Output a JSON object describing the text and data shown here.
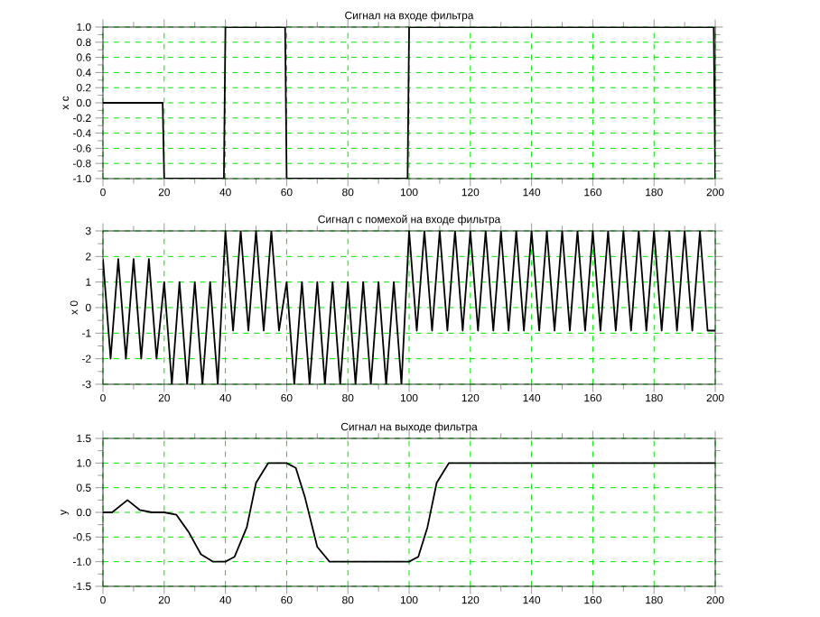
{
  "chart_data": [
    {
      "type": "line",
      "title": "Сигнал на входе фильтра",
      "ylabel": "x c",
      "color": "#000000",
      "grid": true,
      "line_style": "solid",
      "x": [
        0,
        19.5,
        20,
        39.5,
        40,
        59.5,
        60,
        99.5,
        100,
        199.5,
        200
      ],
      "values": [
        0,
        0,
        -1,
        -1,
        1,
        1,
        -1,
        -1,
        1,
        1,
        -1
      ],
      "xlim": [
        0,
        200
      ],
      "ylim": [
        -1,
        1
      ],
      "xticks": [
        0,
        20,
        40,
        60,
        80,
        100,
        120,
        140,
        160,
        180,
        200
      ],
      "yticks": [
        {
          "value": -1,
          "label": "-1.0"
        },
        {
          "value": -0.8,
          "label": "-0.8"
        },
        {
          "value": -0.6,
          "label": "-0.6"
        },
        {
          "value": -0.4,
          "label": "-0.4"
        },
        {
          "value": -0.2,
          "label": "-0.2"
        },
        {
          "value": 0,
          "label": "0.0"
        },
        {
          "value": 0.2,
          "label": "0.2"
        },
        {
          "value": 0.4,
          "label": "0.4"
        },
        {
          "value": 0.6,
          "label": "0.6"
        },
        {
          "value": 0.8,
          "label": "0.8"
        },
        {
          "value": 1,
          "label": "1.0"
        }
      ]
    },
    {
      "type": "line",
      "title": "Сигнал с помехой на входе фильтра",
      "ylabel": "x 0",
      "color": "#000000",
      "grid": true,
      "line_style": "solid",
      "x": [
        0,
        2.5,
        5,
        7.5,
        10,
        12.5,
        15,
        17.5,
        20,
        22.5,
        25,
        27.5,
        30,
        32.5,
        35,
        37.5,
        40,
        42.5,
        45,
        47.5,
        50,
        52.5,
        55,
        57.5,
        60,
        62.5,
        65,
        67.5,
        70,
        72.5,
        75,
        77.5,
        80,
        82.5,
        85,
        87.5,
        90,
        92.5,
        95,
        97.5,
        100,
        102.5,
        105,
        107.5,
        110,
        112.5,
        115,
        117.5,
        120,
        122.5,
        125,
        127.5,
        130,
        132.5,
        135,
        137.5,
        140,
        142.5,
        145,
        147.5,
        150,
        152.5,
        155,
        157.5,
        160,
        162.5,
        165,
        167.5,
        170,
        172.5,
        175,
        177.5,
        180,
        182.5,
        185,
        187.5,
        190,
        192.5,
        195,
        197.5,
        200
      ],
      "values": [
        1.9,
        -2,
        1.9,
        -2,
        1.9,
        -2,
        1.9,
        -2,
        1,
        -3,
        1,
        -3,
        1,
        -3,
        1,
        -3,
        3,
        -0.9,
        3,
        -0.9,
        3,
        -0.9,
        3,
        -0.9,
        1,
        -3,
        1,
        -3,
        1,
        -3,
        1,
        -3,
        1,
        -3,
        1,
        -3,
        1,
        -3,
        1,
        -3,
        3,
        -0.9,
        3,
        -0.9,
        3,
        -0.9,
        3,
        -0.9,
        3,
        -0.9,
        3,
        -0.9,
        3,
        -0.9,
        3,
        -0.9,
        3,
        -0.9,
        3,
        -0.9,
        3,
        -0.9,
        3,
        -0.9,
        3,
        -0.9,
        3,
        -0.9,
        3,
        -0.9,
        3,
        -0.9,
        3,
        -0.9,
        3,
        -0.9,
        3,
        -0.9,
        3,
        -0.9,
        -0.9
      ],
      "xlim": [
        0,
        200
      ],
      "ylim": [
        -3,
        3
      ],
      "xticks": [
        0,
        20,
        40,
        60,
        80,
        100,
        120,
        140,
        160,
        180,
        200
      ],
      "yticks": [
        -3,
        -2,
        -1,
        0,
        1,
        2,
        3
      ]
    },
    {
      "type": "line",
      "title": "Сигнал на выходе фильтра",
      "ylabel": "y",
      "color": "#000000",
      "grid": true,
      "line_style": "solid",
      "x": [
        0,
        3,
        8,
        12,
        16,
        20,
        24,
        28,
        32,
        36,
        40,
        43,
        47,
        50,
        54,
        60,
        63,
        66,
        70,
        74,
        80,
        90,
        100,
        103,
        106,
        109,
        113,
        120,
        200
      ],
      "values": [
        0,
        0,
        0.25,
        0.05,
        0,
        0,
        -0.05,
        -0.4,
        -0.85,
        -1,
        -1,
        -0.9,
        -0.3,
        0.6,
        1,
        1,
        0.9,
        0.3,
        -0.7,
        -1,
        -1,
        -1,
        -1,
        -0.9,
        -0.3,
        0.6,
        1,
        1,
        1
      ],
      "xlim": [
        0,
        200
      ],
      "ylim": [
        -1.5,
        1.5
      ],
      "xticks": [
        0,
        20,
        40,
        60,
        80,
        100,
        120,
        140,
        160,
        180,
        200
      ],
      "yticks": [
        {
          "value": -1.5,
          "label": "-1.5"
        },
        {
          "value": -1,
          "label": "-1.0"
        },
        {
          "value": -0.5,
          "label": "-0.5"
        },
        {
          "value": 0,
          "label": "0.0"
        },
        {
          "value": 0.5,
          "label": "0.5"
        },
        {
          "value": 1,
          "label": "1.0"
        },
        {
          "value": 1.5,
          "label": "1.5"
        }
      ]
    }
  ]
}
